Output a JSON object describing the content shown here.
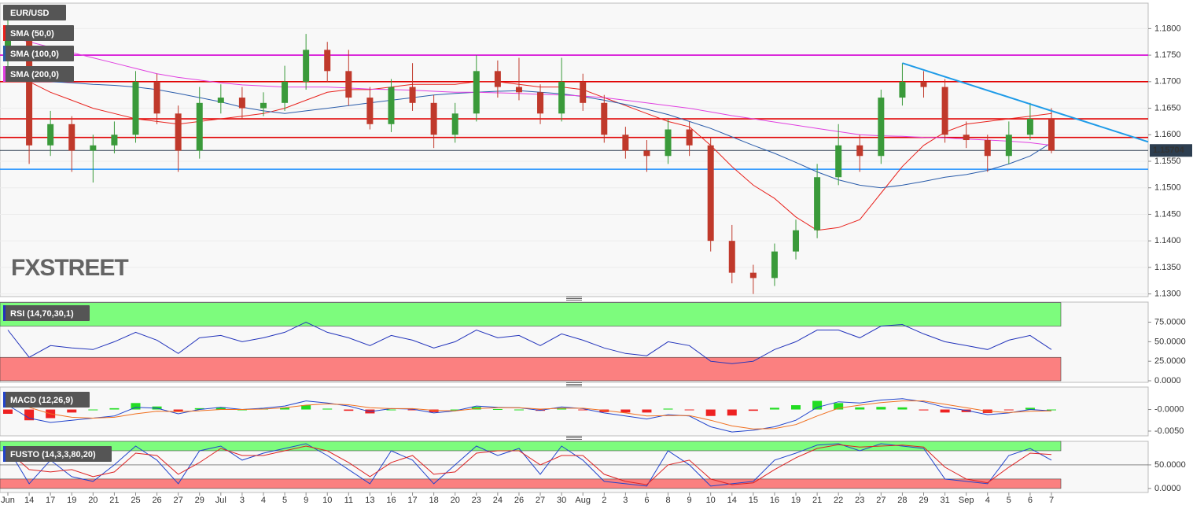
{
  "chart_data": [
    {
      "type": "candlestick",
      "symbol": "EUR/USD",
      "watermark": "FXSTREET",
      "categories": [
        "Jun",
        "14",
        "17",
        "19",
        "20",
        "21",
        "25",
        "26",
        "27",
        "29",
        "Jul",
        "3",
        "4",
        "5",
        "9",
        "10",
        "11",
        "13",
        "16",
        "17",
        "18",
        "20",
        "23",
        "24",
        "26",
        "27",
        "30",
        "Aug",
        "2",
        "3",
        "6",
        "8",
        "9",
        "10",
        "14",
        "15",
        "16",
        "19",
        "21",
        "22",
        "23",
        "27",
        "28",
        "29",
        "31",
        "Sep",
        "4",
        "5",
        "6",
        "7"
      ],
      "open": [
        1.174,
        1.178,
        1.158,
        1.162,
        1.157,
        1.158,
        1.16,
        1.17,
        1.164,
        1.157,
        1.166,
        1.167,
        1.165,
        1.166,
        1.17,
        1.176,
        1.172,
        1.167,
        1.162,
        1.169,
        1.166,
        1.16,
        1.164,
        1.172,
        1.169,
        1.168,
        1.164,
        1.17,
        1.166,
        1.16,
        1.157,
        1.156,
        1.161,
        1.158,
        1.14,
        1.134,
        1.133,
        1.138,
        1.142,
        1.152,
        1.158,
        1.156,
        1.167,
        1.17,
        1.169,
        1.16,
        1.159,
        1.156,
        1.16,
        1.163
      ],
      "high": [
        1.1845,
        1.1795,
        1.1645,
        1.1635,
        1.16,
        1.1625,
        1.172,
        1.1715,
        1.1655,
        1.169,
        1.1695,
        1.169,
        1.168,
        1.173,
        1.179,
        1.1775,
        1.176,
        1.169,
        1.1705,
        1.1735,
        1.1675,
        1.166,
        1.175,
        1.174,
        1.1745,
        1.1695,
        1.1745,
        1.1715,
        1.1675,
        1.1615,
        1.159,
        1.163,
        1.1625,
        1.1595,
        1.143,
        1.1355,
        1.1395,
        1.144,
        1.1545,
        1.162,
        1.16,
        1.1685,
        1.1735,
        1.172,
        1.1705,
        1.1625,
        1.16,
        1.1625,
        1.166,
        1.165
      ],
      "low": [
        1.1725,
        1.1545,
        1.156,
        1.153,
        1.151,
        1.1565,
        1.1585,
        1.162,
        1.153,
        1.1555,
        1.164,
        1.163,
        1.1635,
        1.1645,
        1.1685,
        1.17,
        1.1655,
        1.161,
        1.1605,
        1.1645,
        1.1575,
        1.1585,
        1.1625,
        1.167,
        1.1665,
        1.162,
        1.1625,
        1.1645,
        1.1585,
        1.1555,
        1.153,
        1.1545,
        1.156,
        1.138,
        1.132,
        1.13,
        1.1315,
        1.1365,
        1.1405,
        1.1505,
        1.153,
        1.1545,
        1.1655,
        1.167,
        1.1585,
        1.1575,
        1.153,
        1.1545,
        1.159,
        1.1565
      ],
      "close": [
        1.178,
        1.158,
        1.162,
        1.157,
        1.158,
        1.16,
        1.17,
        1.164,
        1.157,
        1.166,
        1.167,
        1.165,
        1.166,
        1.17,
        1.176,
        1.172,
        1.167,
        1.162,
        1.169,
        1.166,
        1.16,
        1.164,
        1.172,
        1.169,
        1.168,
        1.164,
        1.17,
        1.166,
        1.16,
        1.157,
        1.156,
        1.161,
        1.158,
        1.14,
        1.134,
        1.133,
        1.138,
        1.142,
        1.152,
        1.158,
        1.156,
        1.167,
        1.17,
        1.169,
        1.16,
        1.159,
        1.156,
        1.16,
        1.163,
        1.157
      ],
      "up_color": "#3a9a3a",
      "down_color": "#c0392b",
      "series": [
        {
          "name": "SMA (50,0)",
          "color": "#e8201b",
          "values": [
            1.172,
            1.17,
            1.168,
            1.1665,
            1.165,
            1.164,
            1.163,
            1.1625,
            1.162,
            1.1625,
            1.163,
            1.1635,
            1.164,
            1.165,
            1.1665,
            1.168,
            1.1685,
            1.1685,
            1.169,
            1.1695,
            1.1695,
            1.1695,
            1.17,
            1.17,
            1.1695,
            1.169,
            1.169,
            1.1685,
            1.167,
            1.1655,
            1.164,
            1.1625,
            1.1615,
            1.158,
            1.154,
            1.1505,
            1.148,
            1.1445,
            1.142,
            1.1425,
            1.144,
            1.149,
            1.154,
            1.158,
            1.1605,
            1.162,
            1.1625,
            1.163,
            1.1635,
            1.164
          ]
        },
        {
          "name": "SMA (100,0)",
          "color": "#2a5caa",
          "values": [
            1.1705,
            1.17,
            1.17,
            1.1698,
            1.1695,
            1.1693,
            1.169,
            1.1685,
            1.1678,
            1.167,
            1.1662,
            1.1652,
            1.1645,
            1.164,
            1.1645,
            1.165,
            1.1655,
            1.166,
            1.1665,
            1.167,
            1.1675,
            1.1678,
            1.168,
            1.1682,
            1.1683,
            1.168,
            1.1677,
            1.1672,
            1.1665,
            1.1657,
            1.1648,
            1.1638,
            1.1625,
            1.1612,
            1.1596,
            1.158,
            1.1565,
            1.1548,
            1.153,
            1.1515,
            1.1505,
            1.15,
            1.1505,
            1.1512,
            1.152,
            1.1525,
            1.1533,
            1.1545,
            1.156,
            1.1585
          ]
        },
        {
          "name": "SMA (200,0)",
          "color": "#e040e0",
          "values": [
            1.1785,
            1.1775,
            1.1765,
            1.1755,
            1.1745,
            1.1735,
            1.1725,
            1.1715,
            1.1708,
            1.1703,
            1.1698,
            1.1694,
            1.1692,
            1.169,
            1.169,
            1.169,
            1.1688,
            1.1686,
            1.1685,
            1.1684,
            1.1682,
            1.168,
            1.168,
            1.1679,
            1.1678,
            1.1676,
            1.1675,
            1.1673,
            1.167,
            1.1665,
            1.166,
            1.1655,
            1.165,
            1.1643,
            1.1636,
            1.163,
            1.1624,
            1.1618,
            1.1612,
            1.1606,
            1.16,
            1.1598,
            1.1597,
            1.1595,
            1.1594,
            1.1592,
            1.159,
            1.1588,
            1.1585,
            1.158
          ]
        }
      ],
      "levels": [
        {
          "value": 1.175,
          "color": "#d500d5"
        },
        {
          "value": 1.17,
          "color": "#e00000"
        },
        {
          "value": 1.163,
          "color": "#e00000"
        },
        {
          "value": 1.1595,
          "color": "#e00000"
        },
        {
          "value": 1.1535,
          "color": "#1e90ff"
        }
      ],
      "trendline": {
        "color": "#1e9be8",
        "points": [
          {
            "x": "28",
            "y": 1.1735
          },
          {
            "x": "7",
            "y": 1.1645
          }
        ]
      },
      "last_price": 1.15704,
      "ylim": [
        1.1295,
        1.1848
      ],
      "yticks": [
        {
          "value": 1.13,
          "label": "1.1300"
        },
        {
          "value": 1.135,
          "label": "1.1350"
        },
        {
          "value": 1.14,
          "label": "1.1400"
        },
        {
          "value": 1.145,
          "label": "1.1450"
        },
        {
          "value": 1.15,
          "label": "1.1500"
        },
        {
          "value": 1.155,
          "label": "1.1550"
        },
        {
          "value": 1.16,
          "label": "1.1600"
        },
        {
          "value": 1.165,
          "label": "1.1650"
        },
        {
          "value": 1.17,
          "label": "1.1700"
        },
        {
          "value": 1.175,
          "label": "1.1750"
        },
        {
          "value": 1.18,
          "label": "1.1800"
        }
      ]
    },
    {
      "type": "line",
      "label": "RSI (14,70,30,1)",
      "color": "#2233bb",
      "values": [
        65,
        30,
        45,
        42,
        40,
        50,
        62,
        52,
        35,
        55,
        58,
        50,
        55,
        62,
        75,
        62,
        55,
        45,
        58,
        52,
        42,
        50,
        65,
        55,
        58,
        45,
        60,
        52,
        42,
        35,
        32,
        50,
        45,
        25,
        22,
        25,
        40,
        50,
        65,
        65,
        55,
        70,
        72,
        60,
        50,
        45,
        40,
        52,
        58,
        40
      ],
      "bands": [
        {
          "from": 70,
          "to": 100,
          "color": "#7dfc7d"
        },
        {
          "from": 0,
          "to": 30,
          "color": "#fb8080"
        }
      ],
      "ylim": [
        -2,
        100.7
      ],
      "yticks": [
        {
          "value": 0,
          "label": "0.0000"
        },
        {
          "value": 25,
          "label": "25.0000"
        },
        {
          "value": 50,
          "label": "50.0000"
        },
        {
          "value": 75,
          "label": "75.0000"
        }
      ]
    },
    {
      "type": "macd",
      "label": "MACD (12,26,9)",
      "macd": [
        0.001,
        -0.002,
        -0.003,
        -0.0025,
        -0.002,
        -0.0015,
        0.0005,
        0.0003,
        -0.001,
        0,
        0.0005,
        0,
        0.0003,
        0.0008,
        0.002,
        0.0015,
        0.0008,
        -0.0005,
        0.0002,
        0.0001,
        -0.0008,
        -0.0003,
        0.0008,
        0.0005,
        0.0004,
        -0.0002,
        0.0006,
        0.0002,
        -0.0008,
        -0.0015,
        -0.0022,
        -0.0012,
        -0.0015,
        -0.004,
        -0.0052,
        -0.0048,
        -0.004,
        -0.0025,
        0.0005,
        0.0018,
        0.0015,
        0.0022,
        0.0025,
        0.0018,
        0.0005,
        -0.0002,
        -0.0012,
        -0.0008,
        0,
        -0.0003
      ],
      "signal": [
        0.002,
        0.0005,
        -0.001,
        -0.0018,
        -0.002,
        -0.0018,
        -0.001,
        -0.0004,
        -0.0005,
        -0.0003,
        0,
        0,
        0.0001,
        0.0004,
        0.001,
        0.0013,
        0.0011,
        0.0004,
        0.0002,
        0.0002,
        -0.0002,
        -0.0003,
        0.0002,
        0.0004,
        0.0004,
        0.0001,
        0.0003,
        0.0003,
        -0.0002,
        -0.0008,
        -0.0015,
        -0.0014,
        -0.0014,
        -0.0025,
        -0.0038,
        -0.0045,
        -0.0044,
        -0.0035,
        -0.0015,
        0.0003,
        0.001,
        0.0016,
        0.002,
        0.002,
        0.0012,
        0.0004,
        -0.0004,
        -0.0007,
        -0.0004,
        -0.0003
      ],
      "histogram": [
        -0.001,
        -0.0025,
        -0.002,
        -0.0007,
        0,
        0.0003,
        0.0015,
        0.0007,
        -0.0005,
        0.0003,
        0.0005,
        0,
        0.0002,
        0.0004,
        0.001,
        0.0002,
        -0.0003,
        -0.0009,
        0,
        -0.0001,
        -0.0006,
        0,
        0.0006,
        0.0001,
        0,
        -0.0003,
        0.0003,
        -0.0001,
        -0.0006,
        -0.0007,
        -0.0007,
        0.0002,
        -0.0001,
        -0.0015,
        -0.0014,
        -0.0003,
        0.0004,
        0.001,
        0.002,
        0.0015,
        0.0005,
        0.0006,
        0.0005,
        -0.0002,
        -0.0007,
        -0.0006,
        -0.0008,
        -0.0001,
        0.0004,
        0
      ],
      "macd_color": "#2244cc",
      "signal_color": "#f07020",
      "up_color": "#22dd22",
      "down_color": "#ee2222",
      "ylim": [
        -0.0061,
        0.0052
      ],
      "yticks": [
        {
          "value": -0.005,
          "label": "-0.0050"
        },
        {
          "value": 0,
          "label": "-0.0000"
        }
      ]
    },
    {
      "type": "stochastic",
      "label": "FUSTO (14,3,3,80,20)",
      "k": [
        85,
        10,
        60,
        25,
        15,
        50,
        90,
        60,
        10,
        80,
        90,
        60,
        75,
        85,
        95,
        70,
        40,
        10,
        80,
        60,
        10,
        50,
        90,
        70,
        85,
        30,
        90,
        60,
        15,
        10,
        5,
        80,
        50,
        5,
        10,
        15,
        60,
        75,
        92,
        95,
        80,
        95,
        90,
        85,
        20,
        15,
        10,
        70,
        85,
        60
      ],
      "d": [
        80,
        40,
        35,
        40,
        25,
        35,
        75,
        70,
        30,
        55,
        85,
        70,
        70,
        80,
        90,
        80,
        55,
        25,
        55,
        70,
        30,
        35,
        75,
        80,
        80,
        50,
        70,
        70,
        30,
        15,
        8,
        50,
        60,
        20,
        8,
        12,
        40,
        65,
        85,
        93,
        88,
        90,
        92,
        88,
        45,
        20,
        12,
        45,
        75,
        72
      ],
      "k_color": "#2244cc",
      "d_color": "#dd2222",
      "bands": [
        {
          "from": 80,
          "to": 100,
          "color": "#7dfc7d"
        },
        {
          "from": 0,
          "to": 20,
          "color": "#fb8080"
        }
      ],
      "ylim": [
        -8.6,
        100
      ],
      "yticks": [
        {
          "value": 0,
          "label": "0.0000"
        },
        {
          "value": 50,
          "label": "50.0000"
        }
      ]
    }
  ]
}
